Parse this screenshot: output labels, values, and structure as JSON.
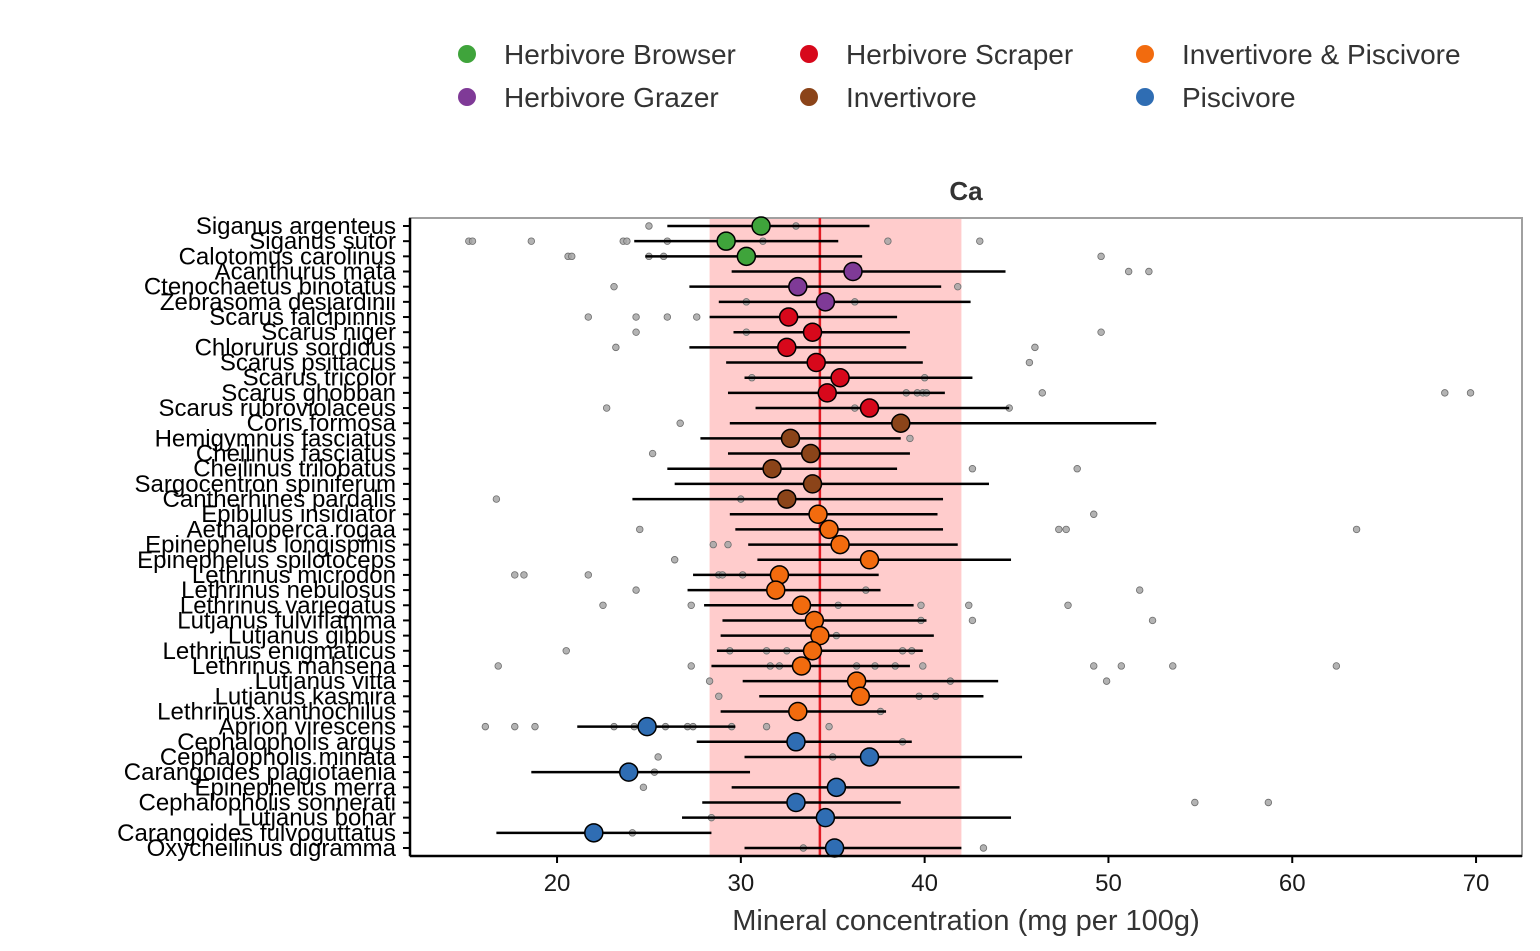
{
  "chart_data": {
    "type": "scatter",
    "title": "Ca",
    "xlabel": "Mineral concentration (mg per 100g)",
    "ylabel": "",
    "xlim": [
      12,
      72.5
    ],
    "xticks": [
      20,
      30,
      40,
      50,
      60,
      70
    ],
    "grid": false,
    "legend_position": "top",
    "overall_mean": 34.3,
    "band": [
      28.3,
      42.0
    ],
    "colors": {
      "Herbivore Browser": "#3fa43b",
      "Herbivore Grazer": "#7f3a97",
      "Herbivore Scraper": "#d7081b",
      "Invertivore": "#8b4419",
      "Invertivore & Piscivore": "#f26b0e",
      "Piscivore": "#2f6db3",
      "mean_line": "#e01b24",
      "band": "#ffcccc",
      "raw_points": "#a6a6a6"
    },
    "legend": [
      {
        "name": "Herbivore Browser"
      },
      {
        "name": "Herbivore Scraper"
      },
      {
        "name": "Invertivore & Piscivore"
      },
      {
        "name": "Herbivore Grazer"
      },
      {
        "name": "Invertivore"
      },
      {
        "name": "Piscivore"
      }
    ],
    "species": [
      {
        "name": "Siganus argenteus",
        "group": "Herbivore Browser",
        "mean": 31.1,
        "lo": 26.0,
        "hi": 37.0,
        "raw": [
          25.0,
          33.0
        ]
      },
      {
        "name": "Siganus sutor",
        "group": "Herbivore Browser",
        "mean": 29.2,
        "lo": 24.2,
        "hi": 35.3,
        "raw": [
          15.2,
          15.4,
          18.6,
          23.6,
          23.8,
          26.0,
          31.2,
          38.0,
          43.0
        ]
      },
      {
        "name": "Calotomus carolinus",
        "group": "Herbivore Browser",
        "mean": 30.3,
        "lo": 24.8,
        "hi": 36.6,
        "raw": [
          20.6,
          20.8,
          25.0,
          25.8,
          49.6
        ]
      },
      {
        "name": "Acanthurus mata",
        "group": "Herbivore Grazer",
        "mean": 36.1,
        "lo": 29.5,
        "hi": 44.4,
        "raw": [
          51.1,
          52.2
        ]
      },
      {
        "name": "Ctenochaetus binotatus",
        "group": "Herbivore Grazer",
        "mean": 33.1,
        "lo": 27.2,
        "hi": 40.9,
        "raw": [
          23.1,
          41.8
        ]
      },
      {
        "name": "Zebrasoma desjardinii",
        "group": "Herbivore Grazer",
        "mean": 34.6,
        "lo": 28.8,
        "hi": 42.5,
        "raw": [
          30.3,
          36.2
        ]
      },
      {
        "name": "Scarus falcipinnis",
        "group": "Herbivore Scraper",
        "mean": 32.6,
        "lo": 28.3,
        "hi": 38.5,
        "raw": [
          21.7,
          24.3,
          26.0,
          27.6
        ]
      },
      {
        "name": "Scarus niger",
        "group": "Herbivore Scraper",
        "mean": 33.9,
        "lo": 29.6,
        "hi": 39.2,
        "raw": [
          24.3,
          30.3,
          49.6
        ]
      },
      {
        "name": "Chlorurus sordidus",
        "group": "Herbivore Scraper",
        "mean": 32.5,
        "lo": 27.2,
        "hi": 39.0,
        "raw": [
          23.2,
          46.0
        ]
      },
      {
        "name": "Scarus psittacus",
        "group": "Herbivore Scraper",
        "mean": 34.1,
        "lo": 29.2,
        "hi": 39.9,
        "raw": [
          45.7
        ]
      },
      {
        "name": "Scarus tricolor",
        "group": "Herbivore Scraper",
        "mean": 35.4,
        "lo": 30.2,
        "hi": 42.6,
        "raw": [
          30.6,
          40.0
        ]
      },
      {
        "name": "Scarus ghobban",
        "group": "Herbivore Scraper",
        "mean": 34.7,
        "lo": 29.3,
        "hi": 41.1,
        "raw": [
          39.0,
          39.6,
          39.9,
          40.1,
          46.4,
          68.3,
          69.7
        ]
      },
      {
        "name": "Scarus rubroviolaceus",
        "group": "Herbivore Scraper",
        "mean": 37.0,
        "lo": 30.8,
        "hi": 44.6,
        "raw": [
          22.7,
          36.2,
          44.6
        ]
      },
      {
        "name": "Coris formosa",
        "group": "Invertivore",
        "mean": 38.7,
        "lo": 29.4,
        "hi": 52.6,
        "raw": [
          26.7
        ]
      },
      {
        "name": "Hemigymnus fasciatus",
        "group": "Invertivore",
        "mean": 32.7,
        "lo": 27.8,
        "hi": 38.7,
        "raw": [
          39.2
        ]
      },
      {
        "name": "Cheilinus fasciatus",
        "group": "Invertivore",
        "mean": 33.8,
        "lo": 29.3,
        "hi": 39.2,
        "raw": [
          25.2
        ]
      },
      {
        "name": "Cheilinus trilobatus",
        "group": "Invertivore",
        "mean": 31.7,
        "lo": 26.0,
        "hi": 38.5,
        "raw": [
          42.6,
          48.3
        ]
      },
      {
        "name": "Sargocentron spiniferum",
        "group": "Invertivore",
        "mean": 33.9,
        "lo": 26.4,
        "hi": 43.5,
        "raw": []
      },
      {
        "name": "Cantherhines pardalis",
        "group": "Invertivore",
        "mean": 32.5,
        "lo": 24.1,
        "hi": 41.0,
        "raw": [
          16.7,
          30.0
        ]
      },
      {
        "name": "Epibulus insidiator",
        "group": "Invertivore & Piscivore",
        "mean": 34.2,
        "lo": 29.4,
        "hi": 40.7,
        "raw": [
          49.2
        ]
      },
      {
        "name": "Aethaloperca rogaa",
        "group": "Invertivore & Piscivore",
        "mean": 34.8,
        "lo": 29.7,
        "hi": 41.0,
        "raw": [
          24.5,
          47.3,
          47.7,
          63.5
        ]
      },
      {
        "name": "Epinephelus longispinis",
        "group": "Invertivore & Piscivore",
        "mean": 35.4,
        "lo": 30.4,
        "hi": 41.8,
        "raw": [
          28.5,
          29.3
        ]
      },
      {
        "name": "Epinephelus spilotoceps",
        "group": "Invertivore & Piscivore",
        "mean": 37.0,
        "lo": 30.9,
        "hi": 44.7,
        "raw": [
          26.4
        ]
      },
      {
        "name": "Lethrinus microdon",
        "group": "Invertivore & Piscivore",
        "mean": 32.1,
        "lo": 27.4,
        "hi": 37.5,
        "raw": [
          17.7,
          18.2,
          21.7,
          28.8,
          29.0,
          30.1
        ]
      },
      {
        "name": "Lethrinus nebulosus",
        "group": "Invertivore & Piscivore",
        "mean": 31.9,
        "lo": 27.1,
        "hi": 37.6,
        "raw": [
          24.3,
          36.8,
          51.7
        ]
      },
      {
        "name": "Lethrinus variegatus",
        "group": "Invertivore & Piscivore",
        "mean": 33.3,
        "lo": 28.0,
        "hi": 39.4,
        "raw": [
          22.5,
          27.3,
          35.3,
          39.8,
          42.4,
          47.8
        ]
      },
      {
        "name": "Lutjanus fulviflamma",
        "group": "Invertivore & Piscivore",
        "mean": 34.0,
        "lo": 29.0,
        "hi": 40.1,
        "raw": [
          39.8,
          42.6,
          52.4
        ]
      },
      {
        "name": "Lutjanus gibbus",
        "group": "Invertivore & Piscivore",
        "mean": 34.3,
        "lo": 28.9,
        "hi": 40.5,
        "raw": [
          35.2
        ]
      },
      {
        "name": "Lethrinus enigmaticus",
        "group": "Invertivore & Piscivore",
        "mean": 33.9,
        "lo": 28.7,
        "hi": 39.9,
        "raw": [
          20.5,
          29.4,
          31.4,
          32.5,
          34.0,
          38.8,
          39.3
        ]
      },
      {
        "name": "Lethrinus mahsena",
        "group": "Invertivore & Piscivore",
        "mean": 33.3,
        "lo": 28.4,
        "hi": 39.2,
        "raw": [
          16.8,
          27.3,
          31.6,
          32.1,
          36.3,
          37.3,
          38.4,
          39.9,
          49.2,
          50.7,
          53.5,
          62.4
        ]
      },
      {
        "name": "Lutjanus vitta",
        "group": "Invertivore & Piscivore",
        "mean": 36.3,
        "lo": 30.1,
        "hi": 44.0,
        "raw": [
          28.3,
          41.4,
          49.9
        ]
      },
      {
        "name": "Lutjanus kasmira",
        "group": "Invertivore & Piscivore",
        "mean": 36.5,
        "lo": 31.0,
        "hi": 43.2,
        "raw": [
          28.8,
          39.7,
          40.6
        ]
      },
      {
        "name": "Lethrinus xanthochilus",
        "group": "Invertivore & Piscivore",
        "mean": 33.1,
        "lo": 28.9,
        "hi": 37.9,
        "raw": [
          37.6
        ]
      },
      {
        "name": "Aprion virescens",
        "group": "Piscivore",
        "mean": 24.9,
        "lo": 21.1,
        "hi": 29.7,
        "raw": [
          16.1,
          17.7,
          18.8,
          23.1,
          24.2,
          25.9,
          27.1,
          27.4,
          29.5,
          31.4,
          34.8
        ]
      },
      {
        "name": "Cephalopholis argus",
        "group": "Piscivore",
        "mean": 33.0,
        "lo": 27.6,
        "hi": 39.3,
        "raw": [
          38.8
        ]
      },
      {
        "name": "Cephalopholis miniata",
        "group": "Piscivore",
        "mean": 37.0,
        "lo": 30.2,
        "hi": 45.3,
        "raw": [
          25.5,
          35.0
        ]
      },
      {
        "name": "Carangoides plagiotaenia",
        "group": "Piscivore",
        "mean": 23.9,
        "lo": 18.6,
        "hi": 30.5,
        "raw": [
          25.3
        ]
      },
      {
        "name": "Epinephelus merra",
        "group": "Piscivore",
        "mean": 35.2,
        "lo": 29.5,
        "hi": 41.9,
        "raw": [
          24.7
        ]
      },
      {
        "name": "Cephalopholis sonnerati",
        "group": "Piscivore",
        "mean": 33.0,
        "lo": 27.9,
        "hi": 38.7,
        "raw": [
          54.7,
          58.7
        ]
      },
      {
        "name": "Lutjanus bohar",
        "group": "Piscivore",
        "mean": 34.6,
        "lo": 26.8,
        "hi": 44.7,
        "raw": [
          28.4
        ]
      },
      {
        "name": "Carangoides fulvoguttatus",
        "group": "Piscivore",
        "mean": 22.0,
        "lo": 16.7,
        "hi": 28.4,
        "raw": [
          24.1
        ]
      },
      {
        "name": "Oxycheilinus digramma",
        "group": "Piscivore",
        "mean": 35.1,
        "lo": 30.2,
        "hi": 42.0,
        "raw": [
          33.4,
          43.2
        ]
      }
    ]
  }
}
